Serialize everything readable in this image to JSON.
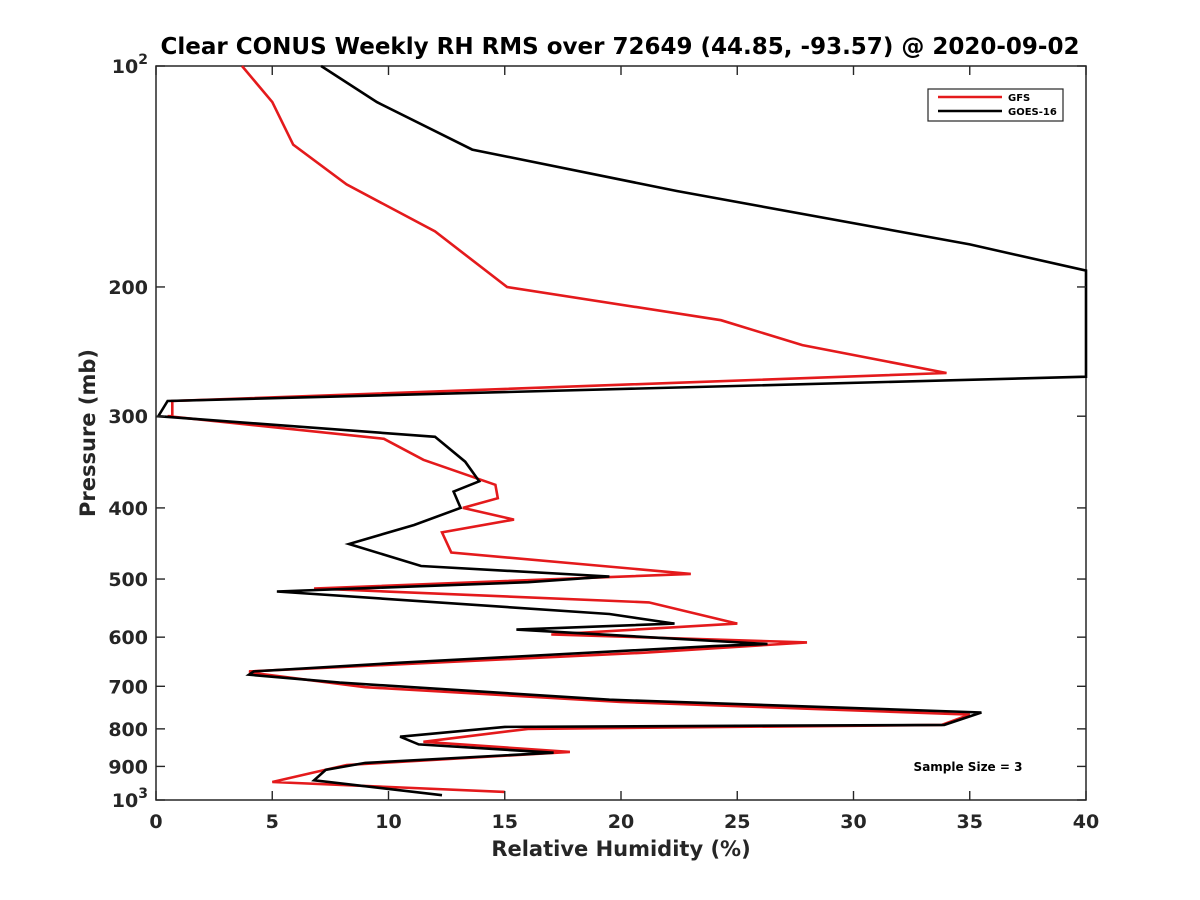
{
  "chart_data": {
    "type": "line",
    "title": "Clear CONUS Weekly RH RMS over 72649 (44.85, -93.57) @ 2020-09-02",
    "xlabel": "Relative Humidity (%)",
    "ylabel": "Pressure (mb)",
    "xlim": [
      0,
      40
    ],
    "ylim": [
      100,
      1000
    ],
    "y_scale": "log",
    "y_reversed": true,
    "grid": false,
    "legend_position": "top-right",
    "x_ticks": [
      0,
      5,
      10,
      15,
      20,
      25,
      30,
      35,
      40
    ],
    "x_tick_labels": [
      "0",
      "5",
      "10",
      "15",
      "20",
      "25",
      "30",
      "35",
      "40"
    ],
    "y_ticks": [
      100,
      200,
      300,
      400,
      500,
      600,
      700,
      800,
      900,
      1000
    ],
    "y_tick_labels": [
      {
        "base": "10",
        "exp": "2"
      },
      {
        "text": "200"
      },
      {
        "text": "300"
      },
      {
        "text": "400"
      },
      {
        "text": "500"
      },
      {
        "text": "600"
      },
      {
        "text": "700"
      },
      {
        "text": "800"
      },
      {
        "text": "900"
      },
      {
        "base": "10",
        "exp": "3"
      }
    ],
    "series": [
      {
        "name": "GFS",
        "color": "#e41a1c",
        "x": [
          3.7,
          5.0,
          5.9,
          8.2,
          12.0,
          15.1,
          24.3,
          27.8,
          34.0,
          0.7,
          0.7,
          0.5,
          9.8,
          11.5,
          14.6,
          14.7,
          13.2,
          15.4,
          12.3,
          12.7,
          23.0,
          6.8,
          21.2,
          25.0,
          17.0,
          28.0,
          21.0,
          4.0,
          4.3,
          9.0,
          20.0,
          35.0,
          33.8,
          16.0,
          11.5,
          17.8,
          8.2,
          6.8,
          5.0,
          15.0
        ],
        "y": [
          100,
          112,
          128,
          145,
          168,
          200,
          222,
          240,
          262,
          286,
          300,
          300,
          322,
          344,
          372,
          388,
          400,
          415,
          432,
          460,
          492,
          515,
          538,
          575,
          595,
          610,
          630,
          668,
          672,
          702,
          735,
          765,
          790,
          800,
          833,
          860,
          896,
          917,
          945,
          975
        ]
      },
      {
        "name": "GOES-16",
        "color": "#000000",
        "x": [
          7.1,
          9.5,
          13.6,
          22.4,
          35.0,
          40.0,
          40.0,
          0.5,
          0.1,
          0.1,
          12.0,
          13.3,
          13.9,
          12.8,
          13.1,
          11.1,
          8.3,
          11.4,
          19.5,
          16.0,
          5.2,
          19.5,
          22.3,
          15.5,
          26.3,
          24.0,
          10.5,
          4.2,
          4.0,
          7.9,
          19.5,
          35.5,
          33.9,
          15.0,
          10.5,
          11.3,
          17.1,
          9.0,
          7.3,
          6.8,
          12.3
        ],
        "y": [
          100,
          112,
          130,
          148,
          175,
          190,
          265,
          286,
          300,
          300,
          320,
          346,
          368,
          380,
          400,
          422,
          448,
          480,
          496,
          505,
          520,
          558,
          575,
          586,
          613,
          617,
          650,
          668,
          675,
          692,
          730,
          760,
          790,
          795,
          820,
          840,
          862,
          890,
          910,
          940,
          985
        ]
      }
    ],
    "annotations": [
      "Sample Size = 3"
    ]
  }
}
